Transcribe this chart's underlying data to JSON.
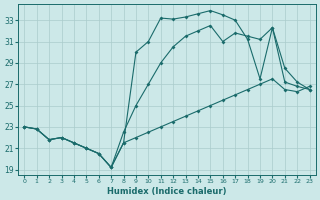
{
  "xlabel": "Humidex (Indice chaleur)",
  "xlim": [
    -0.5,
    23.5
  ],
  "ylim": [
    18.5,
    34.5
  ],
  "xticks": [
    0,
    1,
    2,
    3,
    4,
    5,
    6,
    7,
    8,
    9,
    10,
    11,
    12,
    13,
    14,
    15,
    16,
    17,
    18,
    19,
    20,
    21,
    22,
    23
  ],
  "yticks": [
    19,
    21,
    23,
    25,
    27,
    29,
    31,
    33
  ],
  "bg_color": "#cce8e8",
  "grid_color": "#aacccc",
  "line_color": "#1a6b6b",
  "line1_x": [
    0,
    1,
    2,
    3,
    4,
    5,
    6,
    7,
    8,
    9,
    10,
    11,
    12,
    13,
    14,
    15,
    16,
    17,
    18,
    19,
    20,
    21,
    22,
    23
  ],
  "line1_y": [
    23.0,
    22.8,
    21.8,
    22.0,
    21.5,
    21.0,
    20.5,
    19.2,
    21.5,
    30.0,
    31.0,
    33.2,
    33.1,
    33.3,
    33.6,
    33.9,
    33.5,
    33.0,
    31.2,
    27.5,
    32.3,
    27.2,
    26.8,
    26.5
  ],
  "line2_x": [
    0,
    1,
    2,
    3,
    4,
    5,
    6,
    7,
    8,
    9,
    10,
    11,
    12,
    13,
    14,
    15,
    16,
    17,
    18,
    19,
    20,
    21,
    22,
    23
  ],
  "line2_y": [
    23.0,
    22.8,
    21.8,
    22.0,
    21.5,
    21.0,
    20.5,
    19.2,
    22.5,
    25.0,
    27.0,
    29.0,
    30.5,
    31.5,
    32.0,
    32.5,
    31.0,
    31.8,
    31.5,
    31.2,
    32.3,
    28.5,
    27.2,
    26.5
  ],
  "line3_x": [
    0,
    1,
    2,
    3,
    4,
    5,
    6,
    7,
    8,
    9,
    10,
    11,
    12,
    13,
    14,
    15,
    16,
    17,
    18,
    19,
    20,
    21,
    22,
    23
  ],
  "line3_y": [
    23.0,
    22.8,
    21.8,
    22.0,
    21.5,
    21.0,
    20.5,
    19.2,
    21.5,
    22.0,
    22.5,
    23.0,
    23.5,
    24.0,
    24.5,
    25.0,
    25.5,
    26.0,
    26.5,
    27.0,
    27.5,
    26.5,
    26.3,
    26.8
  ]
}
